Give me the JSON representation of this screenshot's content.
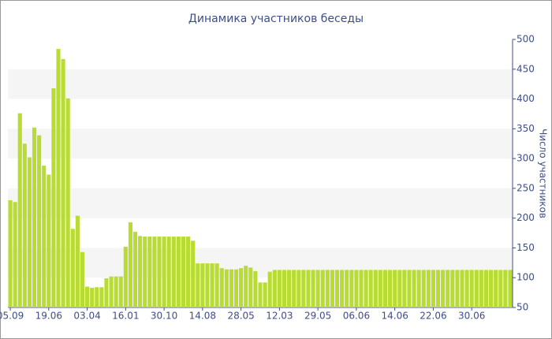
{
  "chart_data": {
    "type": "bar",
    "title": "Динамика участников беседы",
    "y_label": "Число участников",
    "categories": [
      "05.09",
      null,
      null,
      null,
      null,
      null,
      null,
      null,
      "19.06",
      null,
      null,
      null,
      null,
      null,
      null,
      null,
      "03.04",
      null,
      null,
      null,
      null,
      null,
      null,
      null,
      "16.01",
      null,
      null,
      null,
      null,
      null,
      null,
      null,
      "30.10",
      null,
      null,
      null,
      null,
      null,
      null,
      null,
      "14.08",
      null,
      null,
      null,
      null,
      null,
      null,
      null,
      "28.05",
      null,
      null,
      null,
      null,
      null,
      null,
      null,
      "12.03",
      null,
      null,
      null,
      null,
      null,
      null,
      null,
      "29.05",
      null,
      null,
      null,
      null,
      null,
      null,
      null,
      "06.06",
      null,
      null,
      null,
      null,
      null,
      null,
      null,
      "14.06",
      null,
      null,
      null,
      null,
      null,
      null,
      null,
      "22.06",
      null,
      null,
      null,
      null,
      null,
      null,
      null,
      "30.06",
      null,
      null,
      null,
      null,
      null,
      null,
      null,
      null
    ],
    "values": [
      230,
      227,
      376,
      325,
      302,
      352,
      339,
      288,
      273,
      418,
      484,
      467,
      401,
      182,
      204,
      143,
      85,
      83,
      84,
      84,
      99,
      102,
      102,
      102,
      152,
      193,
      177,
      170,
      169,
      169,
      169,
      169,
      169,
      169,
      169,
      169,
      169,
      169,
      162,
      124,
      124,
      124,
      124,
      124,
      116,
      114,
      114,
      114,
      116,
      120,
      117,
      111,
      92,
      92,
      110,
      113,
      113,
      113,
      113,
      113,
      113,
      113,
      113,
      113,
      113,
      113,
      113,
      113,
      113,
      113,
      113,
      113,
      113,
      113,
      113,
      113,
      113,
      113,
      113,
      113,
      113,
      113,
      113,
      113,
      113,
      113,
      113,
      113,
      113,
      113,
      113,
      113,
      113,
      113,
      113,
      113,
      113,
      113,
      113,
      113,
      113,
      113,
      113,
      113,
      113
    ],
    "color": "#b9dc34",
    "ylim": [
      50,
      500
    ],
    "yticks": [
      50,
      100,
      150,
      200,
      250,
      300,
      350,
      400,
      450,
      500
    ],
    "grid": "bands",
    "y_axis_side": "right"
  }
}
